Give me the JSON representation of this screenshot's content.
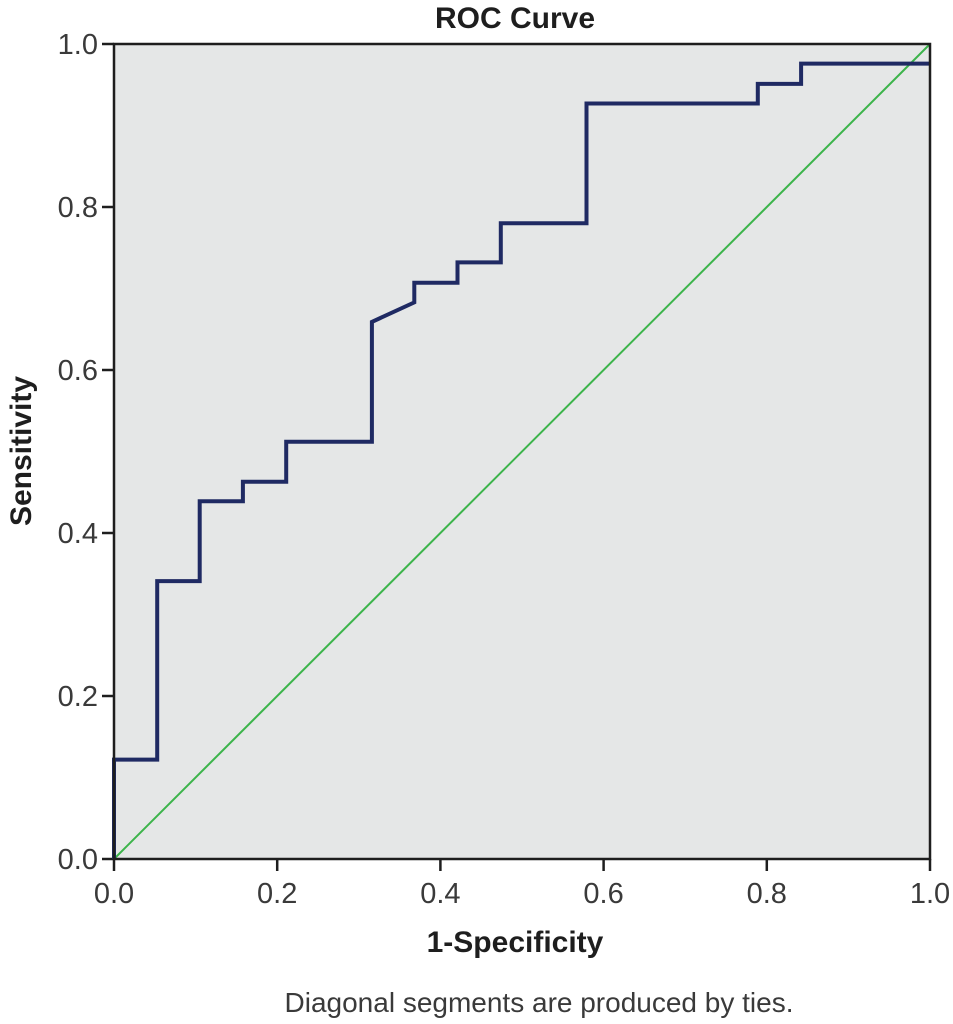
{
  "chart_data": {
    "type": "line",
    "title": "ROC Curve",
    "xlabel": "1-Specificity",
    "ylabel": "Sensitivity",
    "xlim": [
      0,
      1
    ],
    "ylim": [
      0,
      1
    ],
    "x_ticks": [
      "0.0",
      "0.2",
      "0.4",
      "0.6",
      "0.8",
      "1.0"
    ],
    "y_ticks": [
      "0.0",
      "0.2",
      "0.4",
      "0.6",
      "0.8",
      "1.0"
    ],
    "footnote": "Diagonal segments are produced by ties.",
    "grid": false,
    "legend": "none",
    "colors": {
      "plot_background": "#e5e7e7",
      "roc_curve": "#1f2a63",
      "reference_line": "#3cb44b",
      "axes": "#1e1e1e"
    },
    "series": [
      {
        "x": [
          0,
          0,
          0.053,
          0.053,
          0.105,
          0.105,
          0.158,
          0.158,
          0.211,
          0.211,
          0.316,
          0.316,
          0.368,
          0.368,
          0.421,
          0.421,
          0.474,
          0.474,
          0.579,
          0.579,
          0.789,
          0.789,
          0.842,
          0.842,
          1.0
        ],
        "y": [
          0,
          0.122,
          0.122,
          0.341,
          0.341,
          0.439,
          0.439,
          0.463,
          0.463,
          0.512,
          0.512,
          0.659,
          0.683,
          0.707,
          0.707,
          0.732,
          0.732,
          0.78,
          0.78,
          0.927,
          0.927,
          0.951,
          0.951,
          0.976,
          0.976
        ]
      },
      {
        "x": [
          0,
          1
        ],
        "y": [
          0,
          1
        ]
      }
    ]
  }
}
